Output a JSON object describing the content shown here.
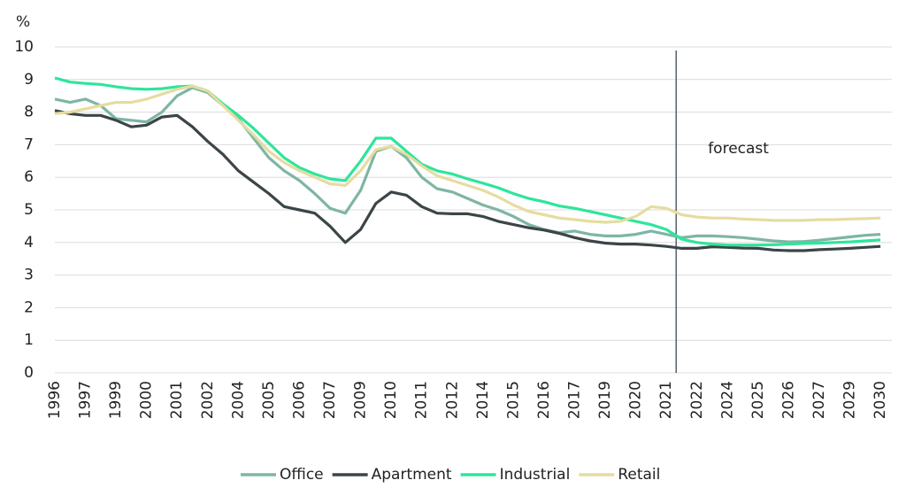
{
  "chart_data": {
    "type": "line",
    "y_label": "%",
    "annotation": "forecast",
    "categories": [
      "1996",
      null,
      "1997",
      null,
      "1999",
      null,
      "2000",
      null,
      "2001",
      null,
      "2002",
      null,
      "2004",
      null,
      "2005",
      null,
      "2006",
      null,
      "2007",
      null,
      "2009",
      null,
      "2010",
      null,
      "2011",
      null,
      "2012",
      null,
      "2014",
      null,
      "2015",
      null,
      "2016",
      null,
      "2017",
      null,
      "2019",
      null,
      "2020",
      null,
      "2021",
      null,
      "2022",
      null,
      "2024",
      null,
      "2025",
      null,
      "2026",
      null,
      "2027",
      null,
      "2029",
      null,
      "2030"
    ],
    "series": [
      {
        "name": "Office",
        "color": "#7fb5a5",
        "values": [
          8.4,
          8.3,
          8.4,
          8.2,
          7.8,
          7.75,
          7.7,
          8.0,
          8.5,
          8.75,
          8.6,
          8.2,
          7.8,
          7.2,
          6.6,
          6.2,
          5.9,
          5.5,
          5.05,
          4.9,
          5.6,
          6.8,
          6.95,
          6.6,
          6.0,
          5.65,
          5.55,
          5.35,
          5.15,
          5.0,
          4.8,
          4.55,
          4.4,
          4.3,
          4.35,
          4.25,
          4.2,
          4.2,
          4.25,
          4.35,
          4.25,
          4.15,
          4.2,
          4.2,
          4.18,
          4.15,
          4.1,
          4.05,
          4.02,
          4.03,
          4.07,
          4.12,
          4.17,
          4.22,
          4.25
        ]
      },
      {
        "name": "Apartment",
        "color": "#3b4547",
        "values": [
          8.05,
          7.95,
          7.9,
          7.9,
          7.75,
          7.55,
          7.6,
          7.85,
          7.9,
          7.55,
          7.1,
          6.7,
          6.2,
          5.85,
          5.5,
          5.1,
          5.0,
          4.9,
          4.5,
          4.0,
          4.4,
          5.2,
          5.55,
          5.45,
          5.1,
          4.9,
          4.88,
          4.88,
          4.8,
          4.65,
          4.55,
          4.45,
          4.38,
          4.28,
          4.15,
          4.05,
          3.98,
          3.95,
          3.95,
          3.92,
          3.88,
          3.82,
          3.82,
          3.87,
          3.85,
          3.83,
          3.82,
          3.77,
          3.75,
          3.75,
          3.78,
          3.8,
          3.82,
          3.85,
          3.88
        ]
      },
      {
        "name": "Industrial",
        "color": "#2ee59b",
        "values": [
          9.05,
          8.92,
          8.88,
          8.85,
          8.78,
          8.72,
          8.7,
          8.72,
          8.78,
          8.8,
          8.65,
          8.25,
          7.9,
          7.5,
          7.05,
          6.6,
          6.3,
          6.1,
          5.95,
          5.9,
          6.5,
          7.2,
          7.2,
          6.8,
          6.4,
          6.2,
          6.1,
          5.95,
          5.82,
          5.68,
          5.5,
          5.35,
          5.25,
          5.12,
          5.05,
          4.95,
          4.85,
          4.75,
          4.65,
          4.55,
          4.4,
          4.1,
          4.0,
          3.95,
          3.92,
          3.92,
          3.92,
          3.93,
          3.95,
          3.97,
          3.98,
          4.0,
          4.02,
          4.05,
          4.08
        ]
      },
      {
        "name": "Retail",
        "color": "#e5dca0",
        "values": [
          7.95,
          8.0,
          8.1,
          8.2,
          8.3,
          8.3,
          8.4,
          8.55,
          8.7,
          8.8,
          8.65,
          8.2,
          7.75,
          7.3,
          6.8,
          6.45,
          6.2,
          6.0,
          5.8,
          5.75,
          6.2,
          6.85,
          6.95,
          6.7,
          6.35,
          6.05,
          5.9,
          5.75,
          5.6,
          5.4,
          5.15,
          4.95,
          4.85,
          4.75,
          4.7,
          4.65,
          4.62,
          4.65,
          4.8,
          5.1,
          5.05,
          4.85,
          4.78,
          4.75,
          4.75,
          4.72,
          4.7,
          4.68,
          4.68,
          4.68,
          4.7,
          4.7,
          4.72,
          4.73,
          4.75
        ]
      }
    ],
    "ylim": [
      0,
      10
    ],
    "yticks": [
      0,
      1,
      2,
      3,
      4,
      5,
      6,
      7,
      8,
      9,
      10
    ],
    "grid": true
  }
}
